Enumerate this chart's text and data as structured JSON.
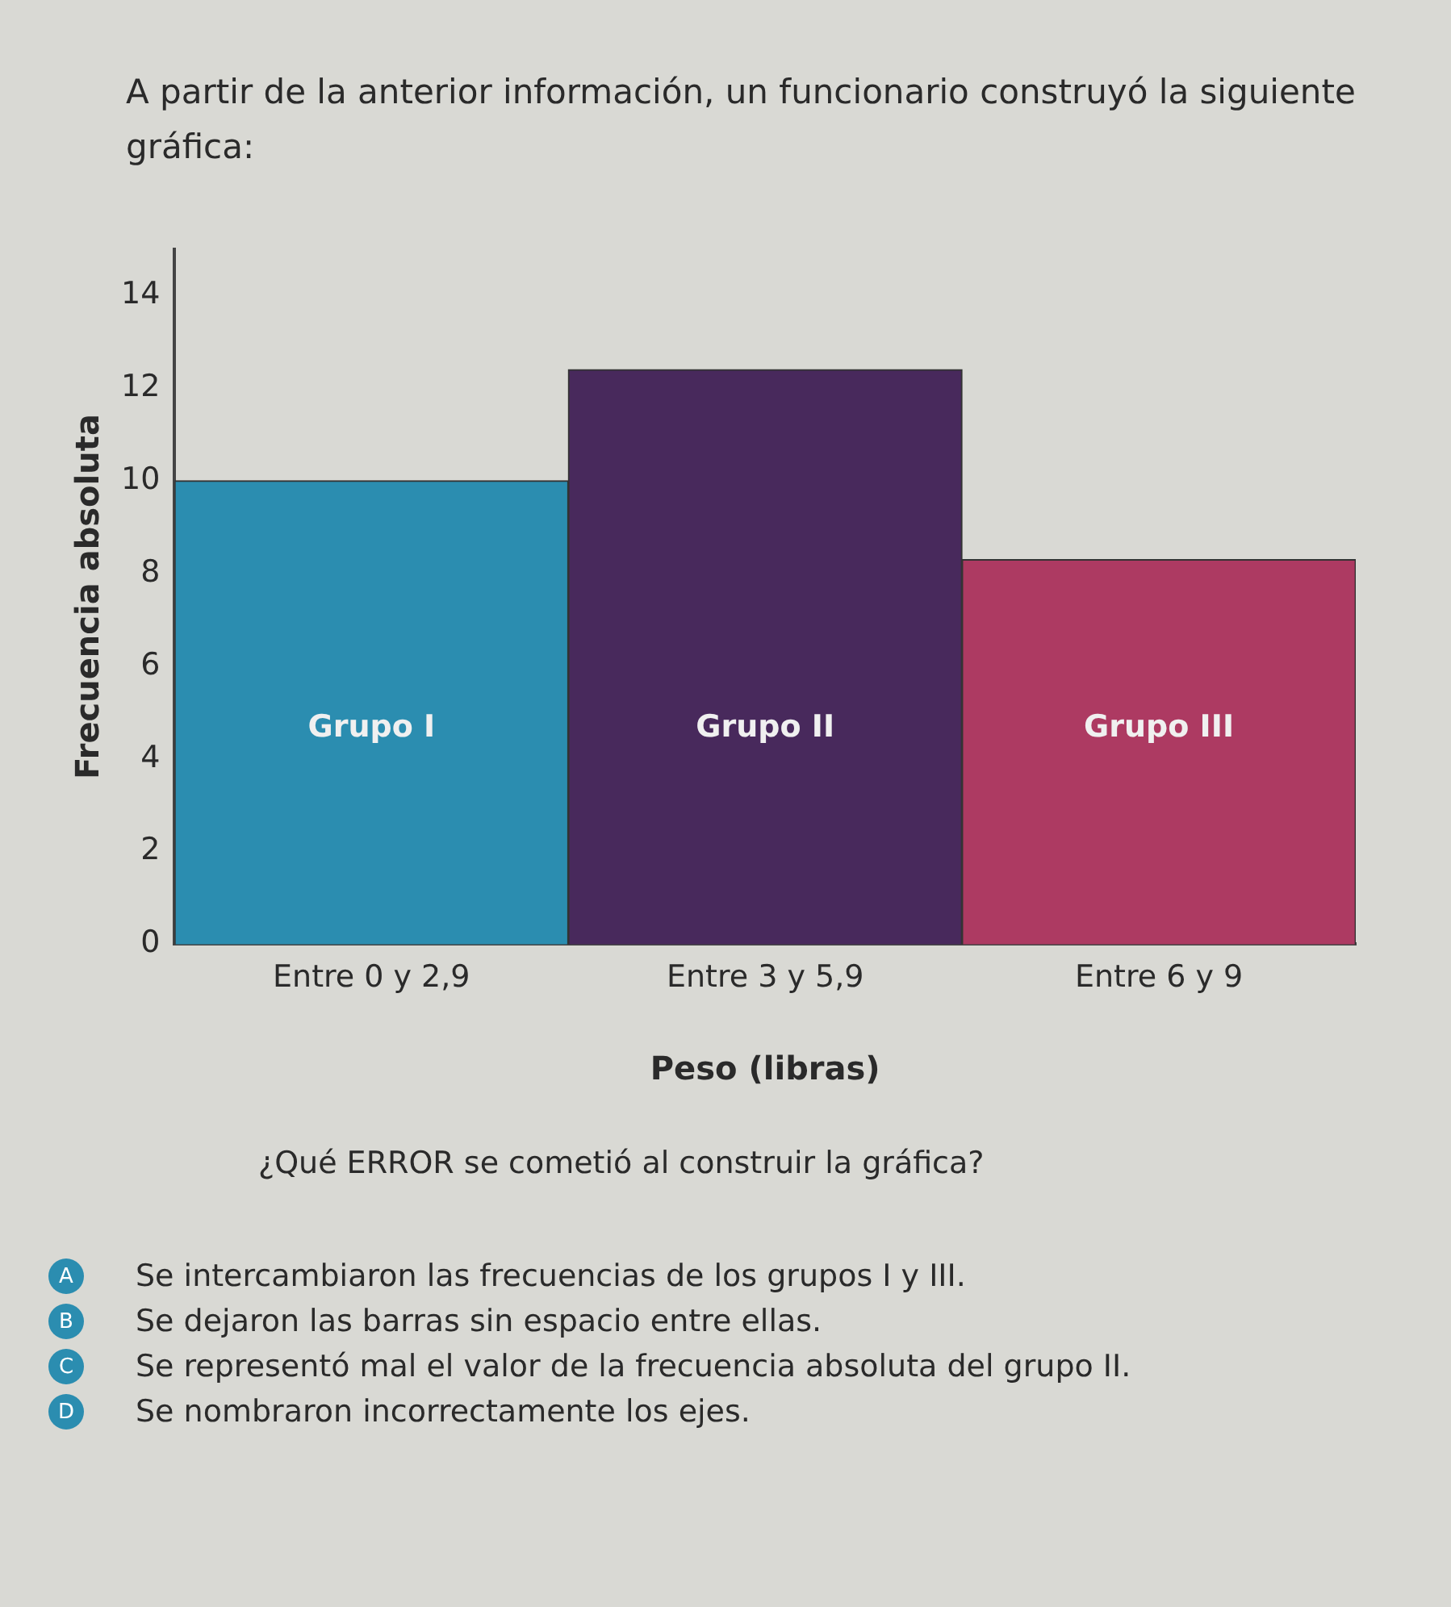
{
  "chart_data": {
    "type": "bar",
    "title": "A partir de la anterior información, un funcionario construyó la siguiente gráfica:",
    "xlabel": "Peso (libras)",
    "ylabel": "Frecuencia absoluta",
    "categories": [
      "Entre 0 y 2,9",
      "Entre 3 y 5,9",
      "Entre 6 y 9"
    ],
    "values": [
      10,
      12.4,
      8.3
    ],
    "colors": [
      "#2b8db0",
      "#48295c",
      "#ad3a62"
    ],
    "ylim": [
      0,
      15
    ],
    "yticks": [
      0,
      2,
      4,
      6,
      8,
      10,
      12,
      14
    ],
    "grid": false,
    "legend": false,
    "annotations": [
      "Grupo I",
      "Grupo II",
      "Grupo III",
      "¿Qué ERROR se cometió al construir la gráfica?",
      "A Se intercambiaron las frecuencias de los grupos I y III.",
      "B Se dejaron las barras sin espacio entre ellas.",
      "C Se representó mal el valor de la frecuencia absoluta del grupo II.",
      "D Se nombraron incorrectamente los ejes."
    ]
  }
}
